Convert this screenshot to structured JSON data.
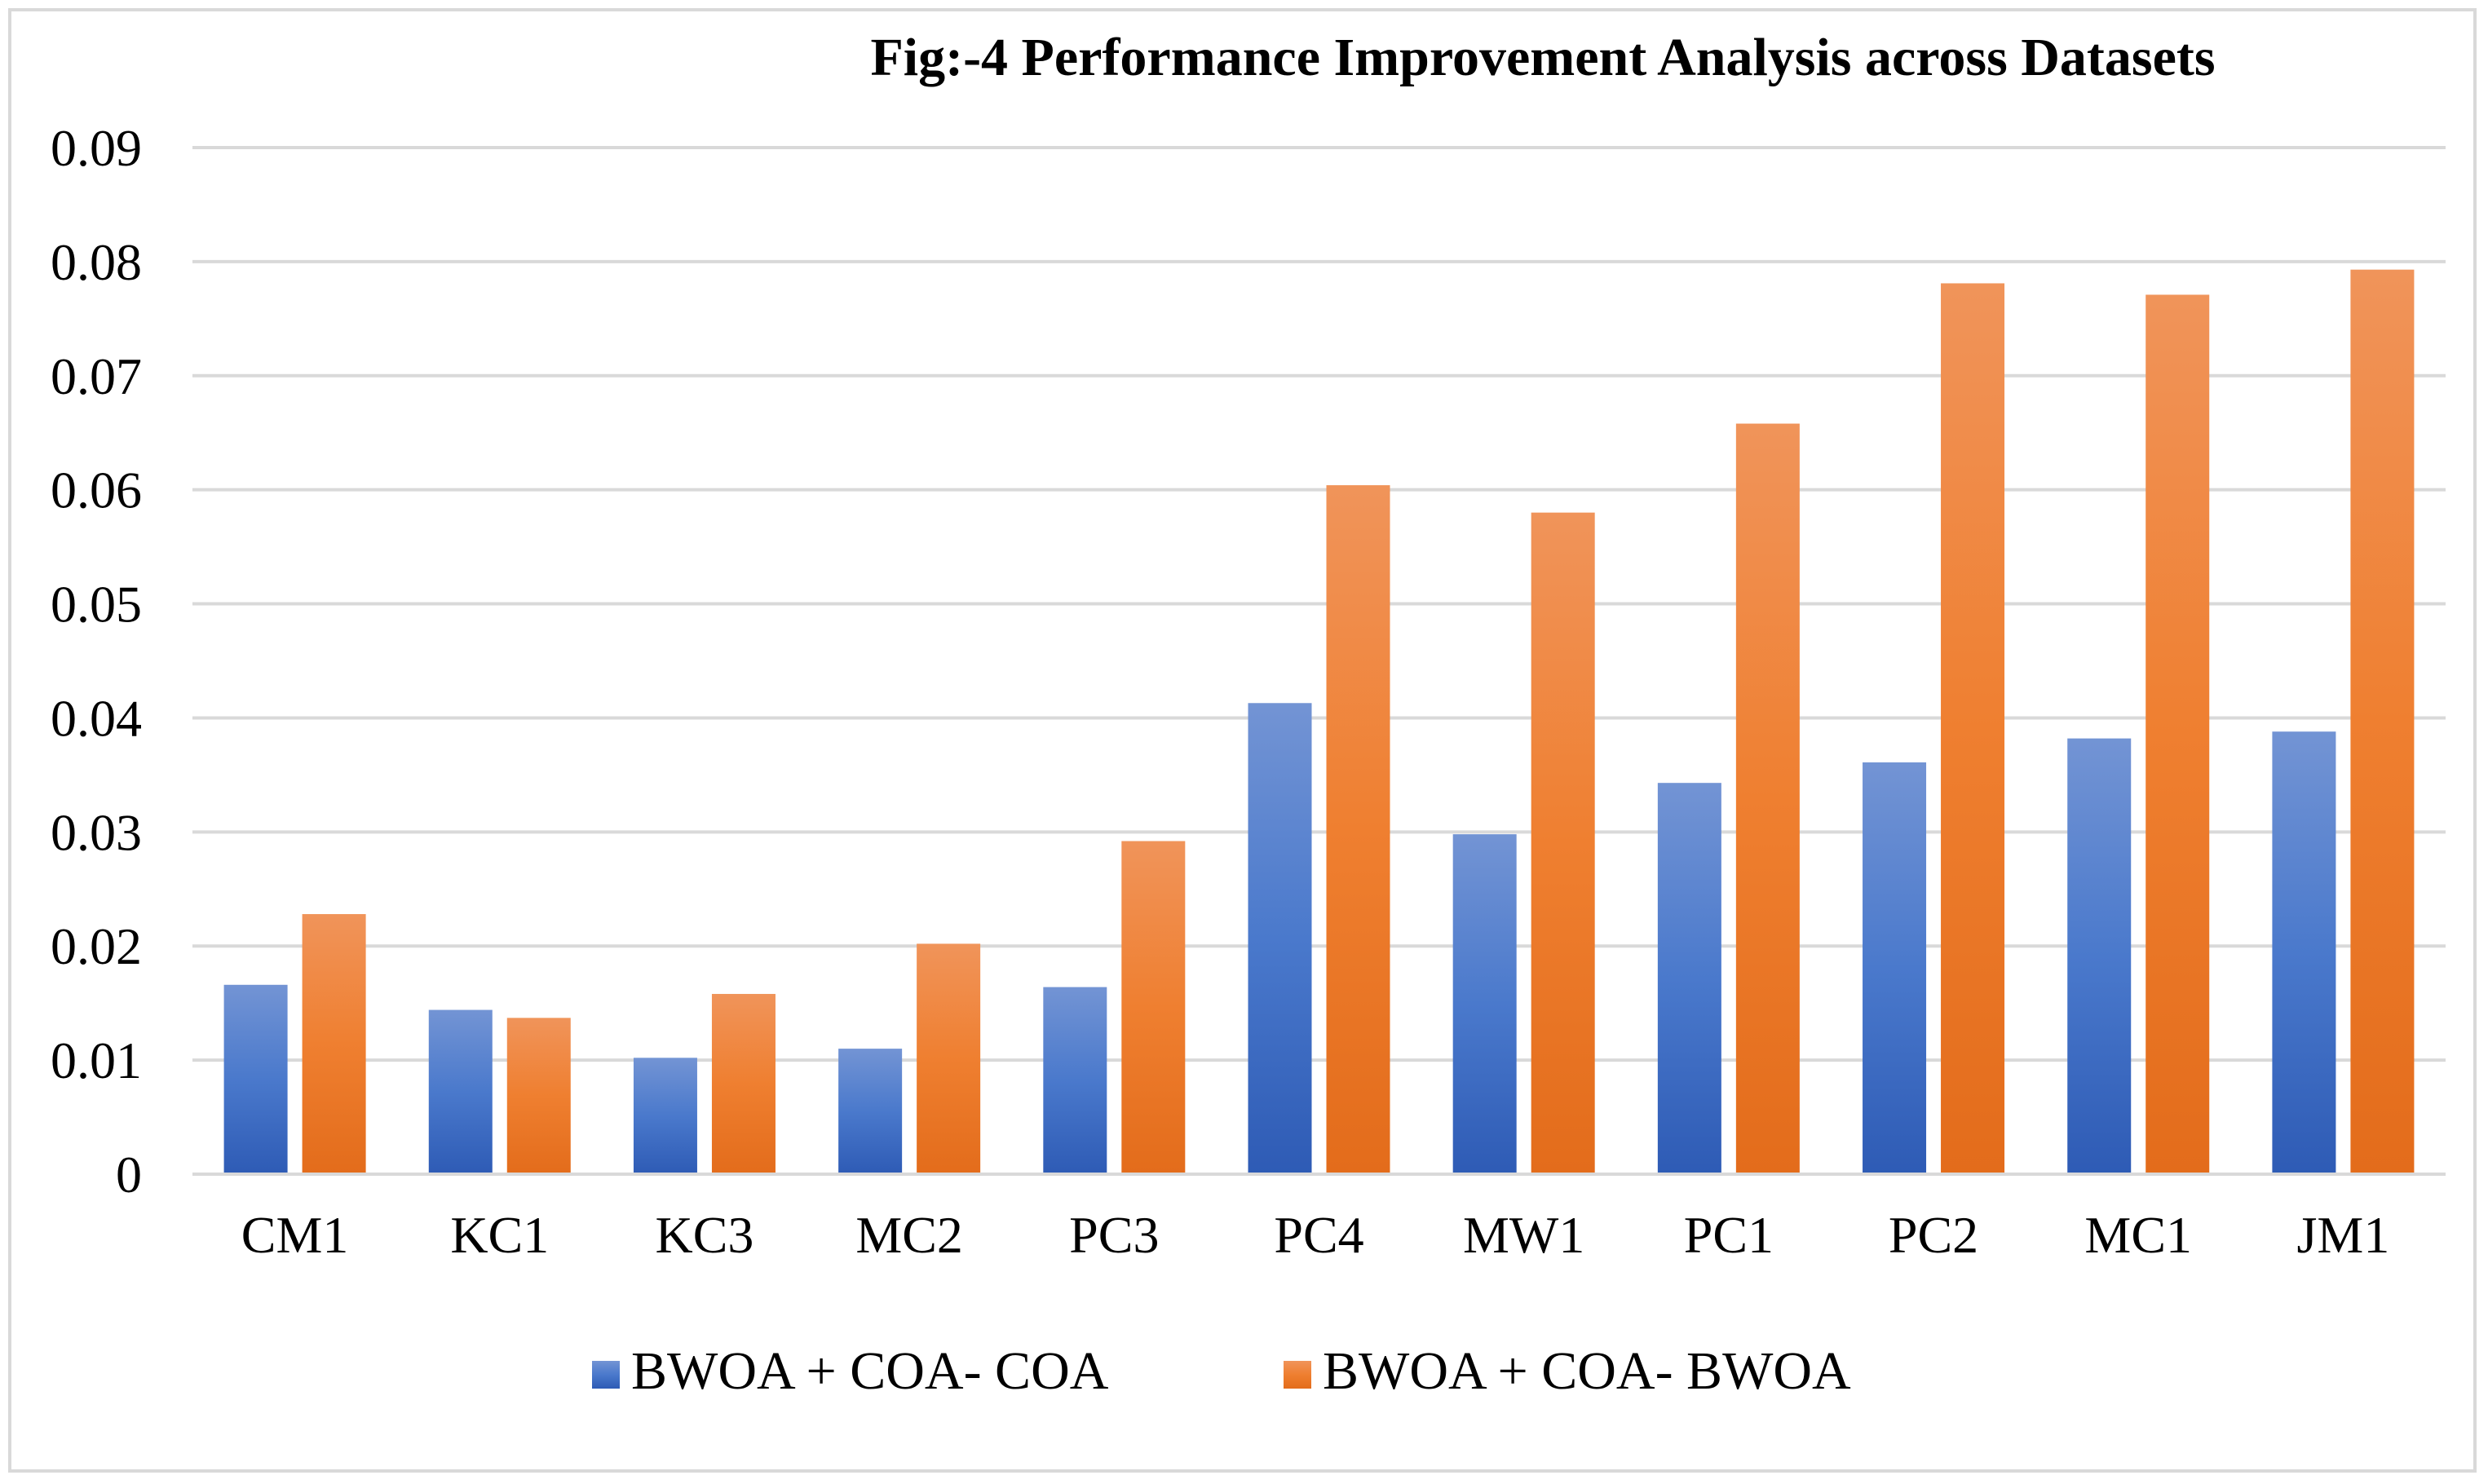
{
  "chart_data": {
    "type": "bar",
    "title": "Fig:-4 Performance Improvement Analysis across Datasets",
    "xlabel": "",
    "ylabel": "",
    "categories": [
      "CM1",
      "KC1",
      "KC3",
      "MC2",
      "PC3",
      "PC4",
      "MW1",
      "PC1",
      "PC2",
      "MC1",
      "JM1"
    ],
    "series": [
      {
        "name": "BWOA + COA- COA",
        "color": "#4472c4",
        "values": [
          0.0166,
          0.0144,
          0.0102,
          0.011,
          0.0164,
          0.0413,
          0.0298,
          0.0343,
          0.0361,
          0.0382,
          0.0388
        ]
      },
      {
        "name": "BWOA + COA- BWOA",
        "color": "#ed7d31",
        "values": [
          0.0228,
          0.0137,
          0.0158,
          0.0202,
          0.0292,
          0.0604,
          0.058,
          0.0658,
          0.0781,
          0.0771,
          0.0793
        ]
      }
    ],
    "ylim": [
      0,
      0.09
    ],
    "yticks": [
      "0",
      "0.01",
      "0.02",
      "0.03",
      "0.04",
      "0.05",
      "0.06",
      "0.07",
      "0.08",
      "0.09"
    ],
    "grid": true,
    "legend_position": "bottom"
  }
}
